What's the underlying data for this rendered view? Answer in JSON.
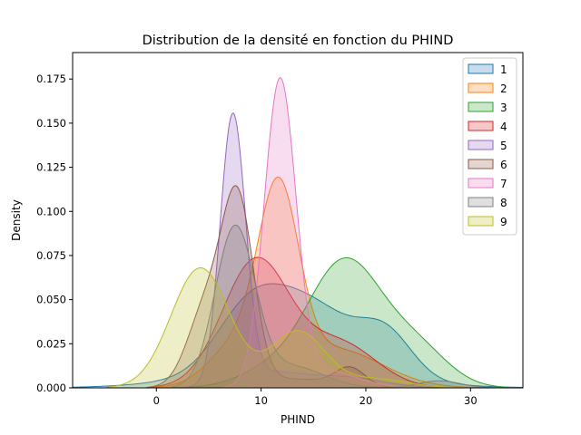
{
  "chart_data": {
    "type": "area",
    "title": "Distribution de la densité en fonction du PHIND",
    "xlabel": "PHIND",
    "ylabel": "Density",
    "xlim": [
      -8,
      35
    ],
    "ylim": [
      0,
      0.19
    ],
    "xticks": [
      0,
      10,
      20,
      30
    ],
    "xtick_labels": [
      "0",
      "10",
      "20",
      "30"
    ],
    "yticks": [
      0,
      0.025,
      0.05,
      0.075,
      0.1,
      0.125,
      0.15,
      0.175
    ],
    "ytick_labels": [
      "0.000",
      "0.025",
      "0.050",
      "0.075",
      "0.100",
      "0.125",
      "0.150",
      "0.175"
    ],
    "grid": false,
    "legend_position": "top-right",
    "series": [
      {
        "name": "1",
        "color": "#1f77b4",
        "components": [
          [
            8.5,
            3.0,
            0.024
          ],
          [
            14.0,
            4.5,
            0.038
          ],
          [
            22.0,
            2.5,
            0.022
          ],
          [
            13.0,
            8.0,
            0.012
          ]
        ]
      },
      {
        "name": "2",
        "color": "#ff7f0e",
        "components": [
          [
            11.7,
            1.9,
            0.098
          ],
          [
            8.0,
            2.8,
            0.025
          ],
          [
            17.0,
            4.5,
            0.022
          ]
        ]
      },
      {
        "name": "3",
        "color": "#2ca02c",
        "components": [
          [
            18.0,
            3.6,
            0.072
          ],
          [
            25.0,
            3.0,
            0.02
          ],
          [
            10.5,
            3.0,
            0.008
          ]
        ]
      },
      {
        "name": "4",
        "color": "#d62728",
        "components": [
          [
            9.5,
            3.2,
            0.072
          ],
          [
            17.5,
            3.5,
            0.025
          ]
        ]
      },
      {
        "name": "5",
        "color": "#9467bd",
        "components": [
          [
            7.3,
            1.2,
            0.152
          ],
          [
            11.0,
            3.0,
            0.008
          ],
          [
            18.0,
            3.5,
            0.006
          ]
        ]
      },
      {
        "name": "6",
        "color": "#8c564b",
        "components": [
          [
            7.8,
            1.5,
            0.1
          ],
          [
            4.8,
            1.8,
            0.045
          ],
          [
            18.5,
            1.4,
            0.01
          ],
          [
            13.0,
            4.0,
            0.005
          ]
        ]
      },
      {
        "name": "7",
        "color": "#e377c2",
        "components": [
          [
            11.8,
            1.5,
            0.172
          ],
          [
            16.0,
            3.0,
            0.01
          ]
        ]
      },
      {
        "name": "8",
        "color": "#7f7f7f",
        "components": [
          [
            7.5,
            1.9,
            0.09
          ],
          [
            13.0,
            3.0,
            0.012
          ],
          [
            27.0,
            2.0,
            0.004
          ]
        ]
      },
      {
        "name": "9",
        "color": "#bcbd22",
        "components": [
          [
            4.2,
            2.8,
            0.068
          ],
          [
            13.5,
            2.6,
            0.032
          ],
          [
            21.0,
            3.0,
            0.005
          ]
        ]
      }
    ]
  }
}
